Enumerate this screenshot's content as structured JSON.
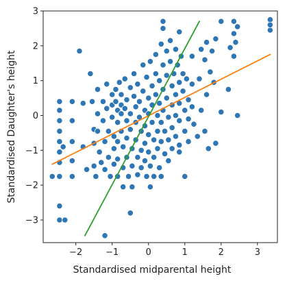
{
  "chart_data": {
    "type": "scatter",
    "title": "",
    "xlabel": "Standardised midparental height",
    "ylabel": "Standardised Daughter's height",
    "xlim": [
      -2.9,
      3.55
    ],
    "ylim": [
      -3.65,
      3.0
    ],
    "xticks": [
      -2,
      -1,
      0,
      1,
      2,
      3
    ],
    "yticks": [
      -3,
      -2,
      -1,
      0,
      1,
      2,
      3
    ],
    "xtick_labels": [
      "−2",
      "−1",
      "0",
      "1",
      "2",
      "3"
    ],
    "ytick_labels": [
      "−3",
      "−2",
      "−1",
      "0",
      "1",
      "2",
      "3"
    ],
    "grid": false,
    "legend": "none",
    "colors": {
      "points": "#2f77b4",
      "point_edge": "#ffffff",
      "regression": "#ff7f0e",
      "sd_line": "#2ca02c"
    },
    "lines": [
      {
        "name": "",
        "color": "#ff7f0e",
        "x": [
          -2.65,
          3.35
        ],
        "y": [
          -1.4,
          1.75
        ]
      },
      {
        "name": "",
        "color": "#2ca02c",
        "x": [
          -1.75,
          1.4
        ],
        "y": [
          -3.45,
          2.7
        ]
      }
    ],
    "points": [
      [
        -2.65,
        -1.75
      ],
      [
        -2.45,
        0.4
      ],
      [
        -2.45,
        0.15
      ],
      [
        -2.45,
        -0.15
      ],
      [
        -2.45,
        -0.45
      ],
      [
        -2.45,
        -0.75
      ],
      [
        -2.45,
        -1.05
      ],
      [
        -2.45,
        -1.35
      ],
      [
        -2.45,
        -1.75
      ],
      [
        -2.45,
        -2.6
      ],
      [
        -2.45,
        -3.0
      ],
      [
        -2.35,
        -0.9
      ],
      [
        -2.3,
        -3.0
      ],
      [
        -2.1,
        0.4
      ],
      [
        -2.1,
        -0.15
      ],
      [
        -2.1,
        -0.75
      ],
      [
        -2.1,
        -1.3
      ],
      [
        -2.1,
        -1.75
      ],
      [
        -1.9,
        1.85
      ],
      [
        -1.8,
        0.35
      ],
      [
        -1.8,
        -0.9
      ],
      [
        -1.7,
        -1.55
      ],
      [
        -1.6,
        1.2
      ],
      [
        -1.55,
        0.4
      ],
      [
        -1.5,
        -0.4
      ],
      [
        -1.5,
        -0.8
      ],
      [
        -1.5,
        -1.45
      ],
      [
        -1.45,
        -1.75
      ],
      [
        -1.4,
        0.75
      ],
      [
        -1.4,
        0.05
      ],
      [
        -1.4,
        -0.45
      ],
      [
        -1.35,
        -1.05
      ],
      [
        -1.3,
        -1.35
      ],
      [
        -1.25,
        0.4
      ],
      [
        -1.25,
        -0.15
      ],
      [
        -1.2,
        -0.75
      ],
      [
        -1.2,
        -1.55
      ],
      [
        -1.2,
        -3.45
      ],
      [
        -1.15,
        0.9
      ],
      [
        -1.15,
        0.2
      ],
      [
        -1.1,
        -0.45
      ],
      [
        -1.1,
        -1.2
      ],
      [
        -1.05,
        -1.75
      ],
      [
        -1.0,
        0.6
      ],
      [
        -1.0,
        0.3
      ],
      [
        -1.0,
        -0.05
      ],
      [
        -0.95,
        -0.6
      ],
      [
        -0.95,
        -0.95
      ],
      [
        -0.95,
        -1.4
      ],
      [
        -0.9,
        0.75
      ],
      [
        -0.9,
        0.4
      ],
      [
        -0.85,
        0.15
      ],
      [
        -0.85,
        -0.2
      ],
      [
        -0.85,
        -0.75
      ],
      [
        -0.85,
        -1.25
      ],
      [
        -0.85,
        -1.75
      ],
      [
        -0.8,
        0.95
      ],
      [
        -0.75,
        0.6
      ],
      [
        -0.75,
        0.3
      ],
      [
        -0.75,
        0.05
      ],
      [
        -0.75,
        -0.45
      ],
      [
        -0.7,
        -0.9
      ],
      [
        -0.7,
        -1.5
      ],
      [
        -0.7,
        -2.05
      ],
      [
        -0.65,
        1.05
      ],
      [
        -0.65,
        0.2
      ],
      [
        -0.6,
        0.45
      ],
      [
        -0.6,
        -0.15
      ],
      [
        -0.6,
        -0.65
      ],
      [
        -0.6,
        -1.2
      ],
      [
        -0.55,
        -1.75
      ],
      [
        -0.5,
        0.8
      ],
      [
        -0.5,
        0.05
      ],
      [
        -0.5,
        -0.4
      ],
      [
        -0.45,
        -0.95
      ],
      [
        -0.45,
        -1.45
      ],
      [
        -0.45,
        -2.05
      ],
      [
        -0.4,
        1.2
      ],
      [
        -0.4,
        0.55
      ],
      [
        -0.35,
        0.25
      ],
      [
        -0.35,
        -0.2
      ],
      [
        -0.35,
        -0.7
      ],
      [
        -0.3,
        -1.2
      ],
      [
        -0.3,
        -1.7
      ],
      [
        -0.3,
        0.9
      ],
      [
        -0.25,
        0.4
      ],
      [
        -0.25,
        -0.05
      ],
      [
        -0.2,
        -0.45
      ],
      [
        -0.2,
        -1.0
      ],
      [
        -0.2,
        -1.5
      ],
      [
        -0.5,
        -2.8
      ],
      [
        -0.15,
        1.45
      ],
      [
        -0.15,
        0.7
      ],
      [
        -0.1,
        0.15
      ],
      [
        -0.1,
        -0.3
      ],
      [
        -0.1,
        -0.8
      ],
      [
        -0.1,
        -1.3
      ],
      [
        -0.05,
        -1.75
      ],
      [
        -0.05,
        1.1
      ],
      [
        0.0,
        0.5
      ],
      [
        0.0,
        0.05
      ],
      [
        0.0,
        -0.55
      ],
      [
        0.0,
        -1.05
      ],
      [
        0.05,
        -1.45
      ],
      [
        0.05,
        -2.05
      ],
      [
        0.05,
        1.55
      ],
      [
        0.1,
        0.85
      ],
      [
        0.1,
        0.3
      ],
      [
        0.1,
        -0.2
      ],
      [
        0.15,
        -0.7
      ],
      [
        0.15,
        -1.2
      ],
      [
        0.15,
        -1.75
      ],
      [
        0.2,
        1.75
      ],
      [
        0.2,
        1.2
      ],
      [
        0.2,
        0.6
      ],
      [
        0.25,
        0.0
      ],
      [
        0.25,
        -0.45
      ],
      [
        0.25,
        -0.95
      ],
      [
        0.3,
        -1.5
      ],
      [
        0.3,
        1.0
      ],
      [
        0.3,
        0.35
      ],
      [
        0.35,
        -0.2
      ],
      [
        0.35,
        -0.75
      ],
      [
        0.35,
        -1.75
      ],
      [
        0.35,
        2.05
      ],
      [
        0.4,
        1.45
      ],
      [
        0.4,
        0.75
      ],
      [
        0.4,
        0.15
      ],
      [
        0.45,
        -0.45
      ],
      [
        0.45,
        -1.1
      ],
      [
        0.4,
        2.5
      ],
      [
        0.4,
        2.7
      ],
      [
        0.5,
        1.85
      ],
      [
        0.5,
        1.15
      ],
      [
        0.5,
        0.5
      ],
      [
        0.55,
        -0.05
      ],
      [
        0.55,
        -0.7
      ],
      [
        0.55,
        -1.3
      ],
      [
        0.6,
        2.15
      ],
      [
        0.6,
        1.55
      ],
      [
        0.65,
        0.85
      ],
      [
        0.65,
        0.3
      ],
      [
        0.65,
        -0.35
      ],
      [
        0.65,
        -0.95
      ],
      [
        0.7,
        1.2
      ],
      [
        0.75,
        0.6
      ],
      [
        0.75,
        0.0
      ],
      [
        0.75,
        -0.6
      ],
      [
        0.75,
        1.9
      ],
      [
        0.8,
        1.45
      ],
      [
        0.85,
        0.95
      ],
      [
        0.85,
        0.35
      ],
      [
        0.85,
        -0.15
      ],
      [
        0.85,
        -0.85
      ],
      [
        0.85,
        -1.05
      ],
      [
        0.85,
        2.4
      ],
      [
        0.9,
        1.7
      ],
      [
        0.95,
        1.2
      ],
      [
        0.95,
        0.7
      ],
      [
        1.0,
        0.15
      ],
      [
        1.0,
        -0.45
      ],
      [
        1.0,
        -1.75
      ],
      [
        1.05,
        1.05
      ],
      [
        1.1,
        0.45
      ],
      [
        1.1,
        -0.1
      ],
      [
        1.1,
        -0.75
      ],
      [
        1.2,
        0.9
      ],
      [
        1.2,
        0.25
      ],
      [
        1.2,
        1.7
      ],
      [
        1.25,
        -0.25
      ],
      [
        1.35,
        -0.6
      ],
      [
        1.4,
        1.05
      ],
      [
        1.45,
        0.15
      ],
      [
        1.45,
        1.9
      ],
      [
        1.55,
        -0.45
      ],
      [
        1.55,
        1.6
      ],
      [
        1.6,
        0.6
      ],
      [
        1.6,
        2.1
      ],
      [
        1.65,
        -0.95
      ],
      [
        1.7,
        1.25
      ],
      [
        1.75,
        1.85
      ],
      [
        1.8,
        0.95
      ],
      [
        1.85,
        -0.8
      ],
      [
        1.85,
        2.2
      ],
      [
        2.0,
        0.1
      ],
      [
        2.0,
        2.7
      ],
      [
        2.2,
        0.75
      ],
      [
        2.25,
        1.95
      ],
      [
        2.35,
        1.7
      ],
      [
        2.35,
        2.35
      ],
      [
        2.35,
        2.7
      ],
      [
        2.4,
        2.1
      ],
      [
        2.45,
        0.0
      ],
      [
        2.45,
        2.55
      ],
      [
        3.35,
        2.75
      ],
      [
        3.35,
        2.45
      ],
      [
        3.35,
        2.6
      ]
    ]
  }
}
